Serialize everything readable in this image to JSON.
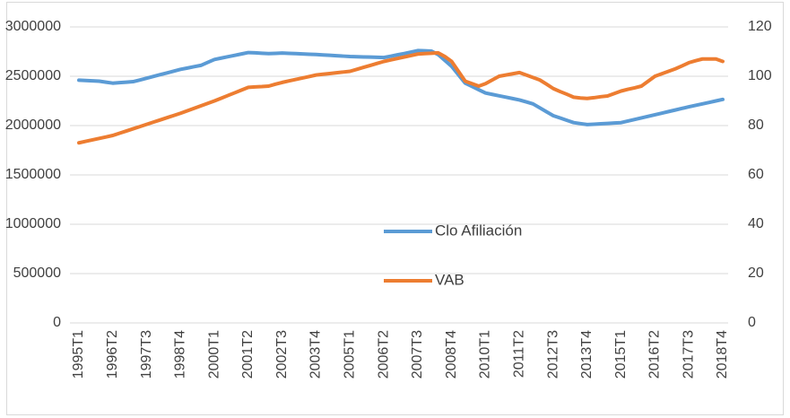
{
  "chart_data": {
    "type": "line",
    "categories": [
      "1995T1",
      null,
      null,
      null,
      null,
      "1996T2",
      null,
      null,
      null,
      null,
      "1997T3",
      null,
      null,
      null,
      null,
      "1998T4",
      null,
      null,
      null,
      null,
      "2000T1",
      null,
      null,
      null,
      null,
      "2001T2",
      null,
      null,
      null,
      null,
      "2002T3",
      null,
      null,
      null,
      null,
      "2003T4",
      null,
      null,
      null,
      null,
      "2005T1",
      null,
      null,
      null,
      null,
      "2006T2",
      null,
      null,
      null,
      null,
      "2007T3",
      null,
      null,
      null,
      null,
      "2008T4",
      null,
      null,
      null,
      null,
      "2010T1",
      null,
      null,
      null,
      null,
      "2011T2",
      null,
      null,
      null,
      null,
      "2012T3",
      null,
      null,
      null,
      null,
      "2013T4",
      null,
      null,
      null,
      null,
      "2015T1",
      null,
      null,
      null,
      null,
      "2016T2",
      null,
      null,
      null,
      null,
      "2017T3",
      null,
      null,
      null,
      null,
      "2018T4"
    ],
    "series": [
      {
        "name": "Clo Afiliación",
        "color": "#5b9bd5",
        "values": [
          2460000,
          2457000,
          2453000,
          2450000,
          2440000,
          2430000,
          2435000,
          2440000,
          2445000,
          2462000,
          2480000,
          2498000,
          2516000,
          2534000,
          2552000,
          2570000,
          2583000,
          2597000,
          2610000,
          2640000,
          2670000,
          2684000,
          2698000,
          2712000,
          2726000,
          2740000,
          2737000,
          2733000,
          2730000,
          2732000,
          2735000,
          2732000,
          2729000,
          2726000,
          2723000,
          2720000,
          2716000,
          2712000,
          2708000,
          2704000,
          2700000,
          2698000,
          2696000,
          2694000,
          2692000,
          2690000,
          2703000,
          2717000,
          2730000,
          2745000,
          2760000,
          2758000,
          2755000,
          2720000,
          2660000,
          2600000,
          2515000,
          2430000,
          2397000,
          2363000,
          2330000,
          2316000,
          2302000,
          2288000,
          2274000,
          2260000,
          2240000,
          2220000,
          2180000,
          2140000,
          2100000,
          2077000,
          2053000,
          2030000,
          2020000,
          2010000,
          2014000,
          2018000,
          2022000,
          2026000,
          2030000,
          2046000,
          2062000,
          2078000,
          2094000,
          2110000,
          2126000,
          2142000,
          2158000,
          2174000,
          2190000,
          2205000,
          2220000,
          2235000,
          2250000,
          2265000
        ]
      },
      {
        "name": "VAB",
        "color": "#ed7d31",
        "axis": "y2",
        "values": [
          73,
          73.6,
          74.2,
          74.8,
          75.4,
          76,
          76.9,
          77.8,
          78.7,
          79.6,
          80.5,
          81.4,
          82.3,
          83.2,
          84.1,
          85,
          86,
          87,
          88,
          89,
          90,
          91.1,
          92.2,
          93.3,
          94.4,
          95.5,
          95.7,
          95.8,
          96,
          96.8,
          97.5,
          98.1,
          98.7,
          99.3,
          99.9,
          100.5,
          100.8,
          101.1,
          101.4,
          101.7,
          102,
          102.8,
          103.6,
          104.4,
          105.2,
          106,
          106.6,
          107.2,
          107.8,
          108.4,
          109,
          109.2,
          109.3,
          109.5,
          108,
          106,
          102,
          98,
          97,
          96,
          97,
          98.5,
          100,
          100.5,
          101,
          101.5,
          100.5,
          99.5,
          98.5,
          96.8,
          95,
          93.8,
          92.7,
          91.5,
          91.2,
          91,
          91.3,
          91.7,
          92,
          93,
          94,
          94.7,
          95.3,
          96,
          98,
          100,
          101,
          102,
          103,
          104.2,
          105.5,
          106.3,
          107,
          107,
          107,
          106
        ]
      }
    ],
    "ylim": [
      0,
      3000000
    ],
    "yticks": [
      0,
      500000,
      1000000,
      1500000,
      2000000,
      2500000,
      3000000
    ],
    "y2lim": [
      0,
      120
    ],
    "y2ticks": [
      0,
      20,
      40,
      60,
      80,
      100,
      120
    ],
    "grid": true,
    "legend": "center"
  }
}
